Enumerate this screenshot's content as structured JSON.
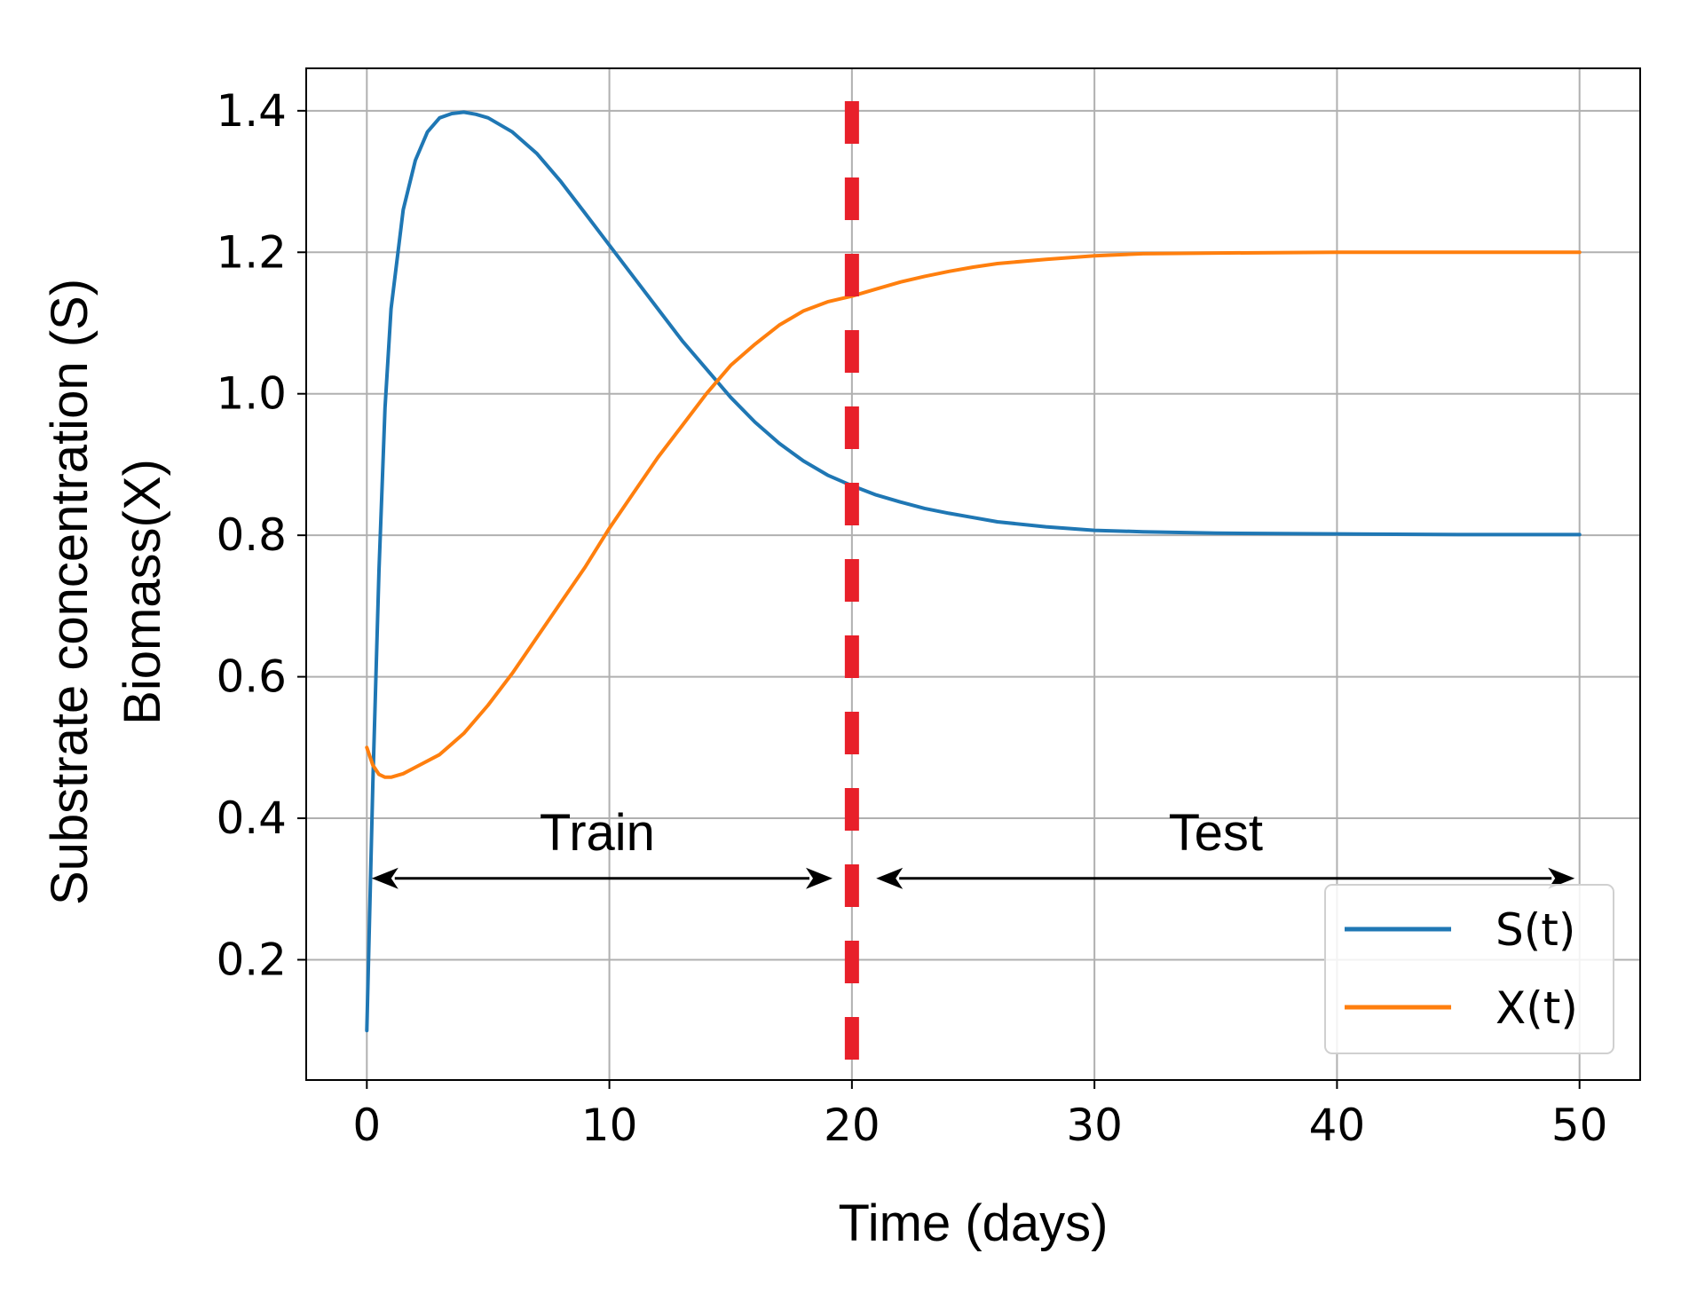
{
  "chart_data": {
    "type": "line",
    "xlabel": "Time (days)",
    "ylabel_lines": [
      "Substrate concentration (S)",
      "Biomass(X)"
    ],
    "xlim": [
      -2.5,
      52.5
    ],
    "ylim": [
      0.03,
      1.46
    ],
    "xticks": [
      0,
      10,
      20,
      30,
      40,
      50
    ],
    "xtick_labels": [
      "0",
      "10",
      "20",
      "30",
      "40",
      "50"
    ],
    "yticks": [
      0.2,
      0.4,
      0.6,
      0.8,
      1.0,
      1.2,
      1.4
    ],
    "ytick_labels": [
      "0.2",
      "0.4",
      "0.6",
      "0.8",
      "1.0",
      "1.2",
      "1.4"
    ],
    "grid": true,
    "legend_position": "lower-right",
    "split": {
      "x": 20,
      "color": "#e8202a",
      "style": "dashed"
    },
    "annotations": [
      {
        "text": "Train",
        "x": 9.5,
        "y": 0.38,
        "arrow_from": 0.2,
        "arrow_to": 19.2,
        "arrow_y": 0.315
      },
      {
        "text": "Test",
        "x": 35.0,
        "y": 0.38,
        "arrow_from": 21.0,
        "arrow_to": 49.8,
        "arrow_y": 0.315
      }
    ],
    "series": [
      {
        "name": "S(t)",
        "color": "#1f77b4",
        "x": [
          0,
          0.25,
          0.5,
          0.75,
          1,
          1.5,
          2,
          2.5,
          3,
          3.5,
          4,
          4.5,
          5,
          6,
          7,
          8,
          9,
          10,
          11,
          12,
          13,
          14,
          15,
          16,
          17,
          18,
          19,
          20,
          21,
          22,
          23,
          24,
          25,
          26,
          28,
          30,
          32,
          35,
          40,
          45,
          50
        ],
        "values": [
          0.1,
          0.45,
          0.75,
          0.98,
          1.12,
          1.26,
          1.33,
          1.37,
          1.39,
          1.396,
          1.398,
          1.395,
          1.39,
          1.37,
          1.34,
          1.3,
          1.255,
          1.21,
          1.165,
          1.12,
          1.075,
          1.035,
          0.995,
          0.96,
          0.93,
          0.905,
          0.885,
          0.87,
          0.857,
          0.847,
          0.838,
          0.831,
          0.825,
          0.819,
          0.812,
          0.807,
          0.805,
          0.803,
          0.802,
          0.801,
          0.801
        ]
      },
      {
        "name": "X(t)",
        "color": "#ff7f0e",
        "x": [
          0,
          0.25,
          0.5,
          0.75,
          1,
          1.5,
          2,
          3,
          4,
          5,
          6,
          7,
          8,
          9,
          10,
          11,
          12,
          13,
          14,
          15,
          16,
          17,
          18,
          19,
          20,
          21,
          22,
          23,
          24,
          25,
          26,
          28,
          30,
          32,
          35,
          40,
          45,
          50
        ],
        "values": [
          0.5,
          0.475,
          0.462,
          0.458,
          0.458,
          0.463,
          0.472,
          0.49,
          0.52,
          0.56,
          0.605,
          0.655,
          0.705,
          0.755,
          0.81,
          0.86,
          0.91,
          0.955,
          1.0,
          1.04,
          1.07,
          1.097,
          1.117,
          1.13,
          1.138,
          1.148,
          1.158,
          1.166,
          1.173,
          1.179,
          1.184,
          1.19,
          1.195,
          1.198,
          1.199,
          1.2,
          1.2,
          1.2
        ]
      }
    ]
  }
}
